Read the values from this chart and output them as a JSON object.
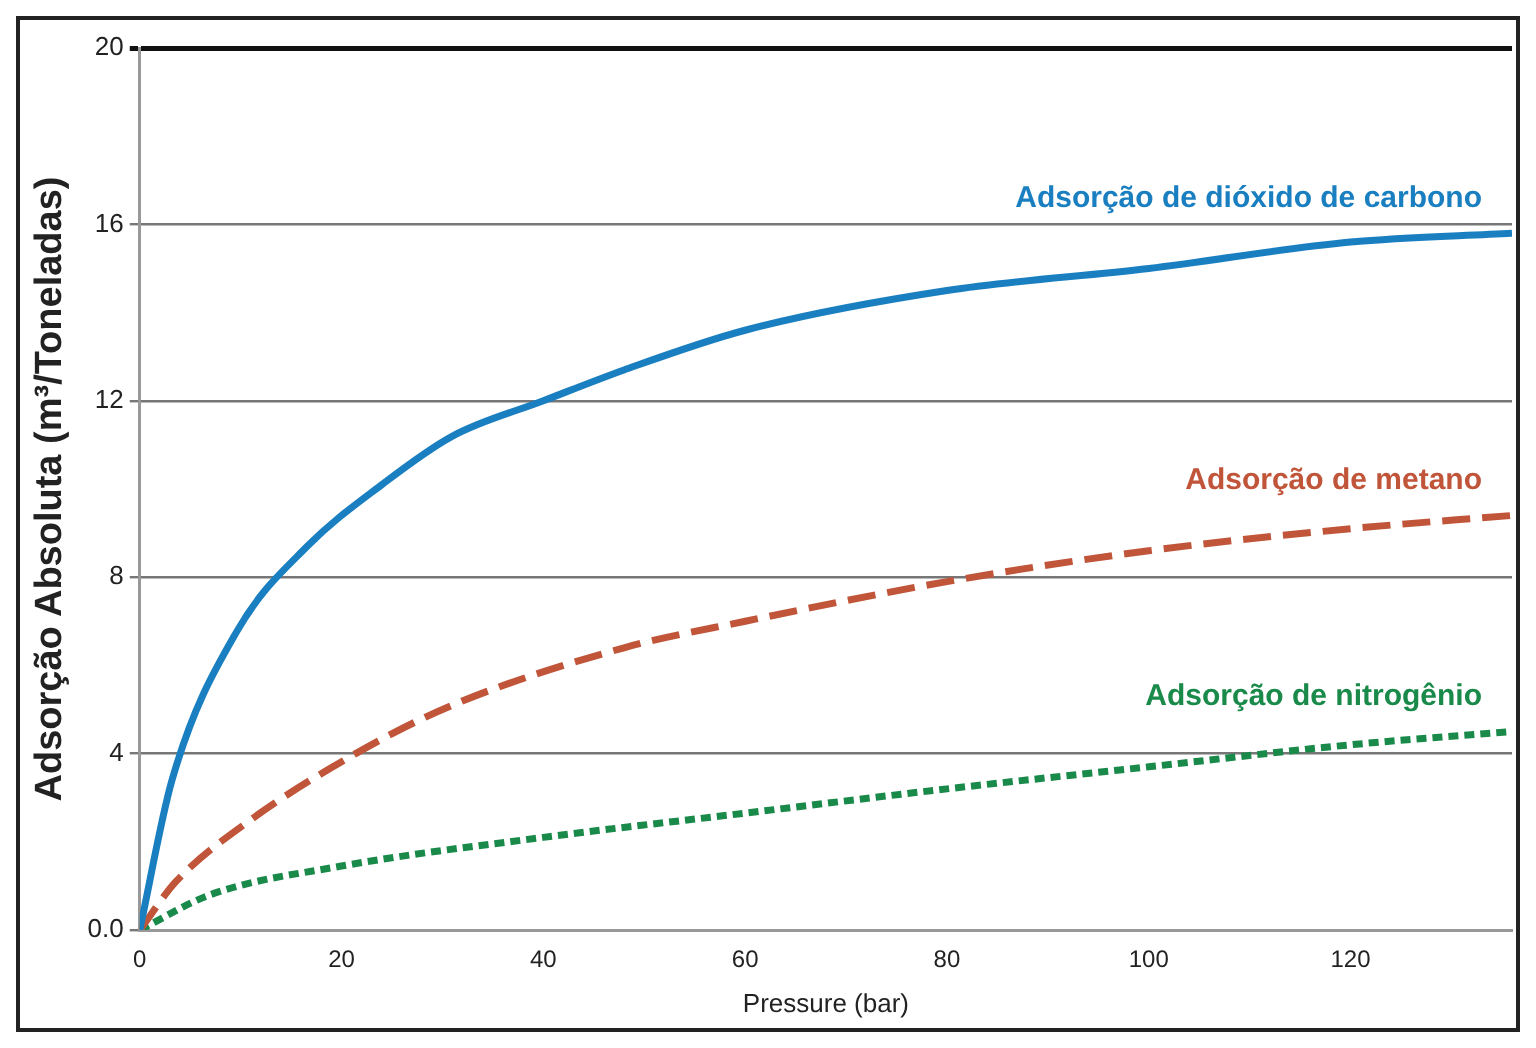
{
  "chart_data": {
    "type": "line",
    "xlabel": "Pressure (bar)",
    "ylabel": "Adsorção Absoluta (m³/Toneladas)",
    "xlim": [
      0,
      136
    ],
    "xticks": [
      0,
      20,
      40,
      60,
      80,
      100,
      120
    ],
    "ylim": [
      0,
      20
    ],
    "yticks": [
      {
        "value": 0,
        "label": "0.0"
      },
      4,
      8,
      12,
      16,
      20
    ],
    "grid": "y",
    "marker": "none",
    "legend": false,
    "series": [
      {
        "name": "Adsorção de dióxido de carbono",
        "color": "#1a7fc0",
        "line_style": "solid",
        "x": [
          0,
          3.2,
          9.7,
          16.6,
          24,
          31,
          40,
          48,
          60,
          80,
          100,
          120,
          136
        ],
        "values": [
          0,
          3.4,
          6.8,
          8.7,
          10.1,
          11.2,
          12.0,
          12.7,
          13.6,
          14.5,
          15.0,
          15.6,
          15.8
        ]
      },
      {
        "name": "Adsorção de metano",
        "color": "#c0553a",
        "line_style": "dashed",
        "x": [
          0,
          3.6,
          10.4,
          21.4,
          31,
          48,
          60,
          80,
          100,
          120,
          136
        ],
        "values": [
          0,
          1.1,
          2.4,
          4.0,
          5.1,
          6.4,
          7.0,
          7.9,
          8.6,
          9.1,
          9.4
        ]
      },
      {
        "name": "Adsorção de nitrogênio",
        "color": "#1a8a4a",
        "line_style": "dotted",
        "x": [
          0,
          7,
          20,
          40,
          60,
          80,
          100,
          120,
          136
        ],
        "values": [
          0,
          0.8,
          1.45,
          2.1,
          2.65,
          3.2,
          3.7,
          4.2,
          4.5
        ]
      }
    ]
  }
}
